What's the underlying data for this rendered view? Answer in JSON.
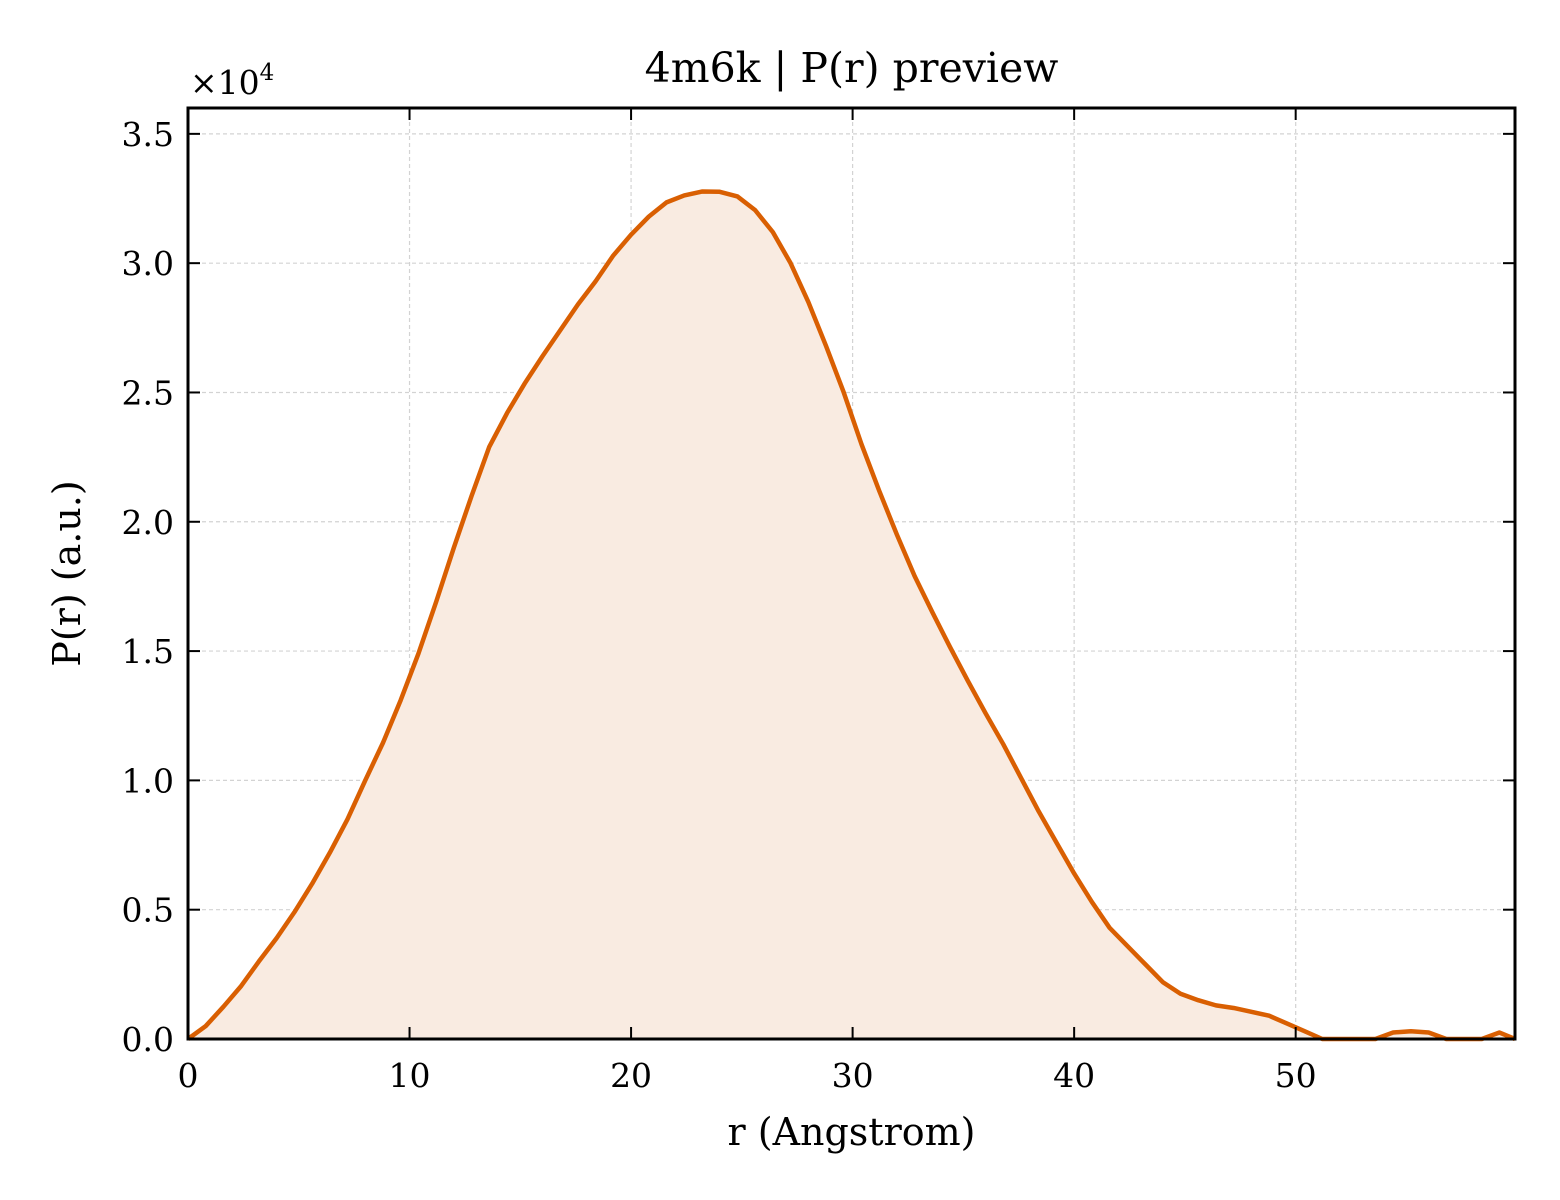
{
  "chart_data": {
    "type": "area",
    "title": "4m6k | P(r) preview",
    "xlabel": "r (Angstrom)",
    "ylabel": "P(r) (a.u.)",
    "y_scale_label": "×10",
    "y_scale_exponent": "4",
    "xlim": [
      0,
      59.9
    ],
    "ylim": [
      0,
      3.6
    ],
    "y_unit_multiplier": 10000,
    "x_ticks": [
      0,
      10,
      20,
      30,
      40,
      50
    ],
    "x_tick_labels": [
      "0",
      "10",
      "20",
      "30",
      "40",
      "50"
    ],
    "y_ticks": [
      0,
      0.5,
      1.0,
      1.5,
      2.0,
      2.5,
      3.0,
      3.5
    ],
    "y_tick_labels": [
      "0.0",
      "0.5",
      "1.0",
      "1.5",
      "2.0",
      "2.5",
      "3.0",
      "3.5"
    ],
    "grid": true,
    "legend": "none",
    "line_color": "#d95f02",
    "fill_color": "#f9ebe1",
    "series": [
      {
        "x": [
          0,
          0.8,
          1.6,
          2.4,
          3.2,
          4.0,
          4.8,
          5.6,
          6.4,
          7.2,
          8.0,
          8.8,
          9.6,
          10.4,
          11.2,
          12.0,
          12.8,
          13.6,
          14.4,
          15.2,
          16.0,
          16.8,
          17.6,
          18.4,
          19.2,
          20.0,
          20.8,
          21.6,
          22.4,
          23.2,
          24.0,
          24.8,
          25.6,
          26.4,
          27.2,
          28.0,
          28.8,
          29.6,
          30.4,
          31.2,
          32.0,
          32.8,
          33.6,
          34.4,
          35.2,
          36.0,
          36.8,
          37.6,
          38.4,
          39.2,
          40.0,
          40.8,
          41.6,
          42.4,
          43.2,
          44.0,
          44.8,
          45.6,
          46.4,
          47.2,
          48.0,
          48.8,
          49.6,
          50.4,
          51.2,
          52.0,
          52.8,
          53.6,
          54.4,
          55.2,
          56.0,
          56.8,
          57.6,
          58.4,
          59.2,
          59.9
        ],
        "y": [
          0.0,
          0.05,
          0.125,
          0.205,
          0.3,
          0.39,
          0.49,
          0.6,
          0.72,
          0.85,
          1.0,
          1.145,
          1.31,
          1.49,
          1.69,
          1.9,
          2.1,
          2.29,
          2.42,
          2.535,
          2.64,
          2.74,
          2.84,
          2.93,
          3.03,
          3.11,
          3.18,
          3.235,
          3.262,
          3.277,
          3.276,
          3.258,
          3.205,
          3.12,
          3.0,
          2.85,
          2.68,
          2.5,
          2.3,
          2.12,
          1.95,
          1.79,
          1.65,
          1.515,
          1.385,
          1.26,
          1.14,
          1.01,
          0.88,
          0.76,
          0.64,
          0.53,
          0.43,
          0.36,
          0.29,
          0.22,
          0.175,
          0.15,
          0.13,
          0.12,
          0.105,
          0.09,
          0.06,
          0.03,
          0.0,
          0.0,
          0.0,
          0.0,
          0.025,
          0.03,
          0.025,
          0.0,
          0.0,
          0.0,
          0.025,
          0.0
        ]
      }
    ]
  }
}
